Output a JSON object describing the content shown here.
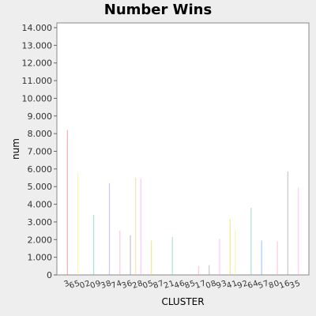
{
  "chart_data": {
    "type": "bar",
    "title": "Number Wins",
    "xlabel": "CLUSTER",
    "ylabel": "num",
    "ylim": [
      0,
      14000
    ],
    "yticks": [
      0,
      1000,
      2000,
      3000,
      4000,
      5000,
      6000,
      7000,
      8000,
      9000,
      10000,
      11000,
      12000,
      13000,
      14000
    ],
    "ytick_labels": [
      "0",
      "1.000",
      "2.000",
      "3.000",
      "4.000",
      "5.000",
      "6.000",
      "7.000",
      "8.000",
      "9.000",
      "10.000",
      "11.000",
      "12.000",
      "13.000",
      "14.000"
    ],
    "grid": false,
    "legend": "none",
    "categories": [
      "3",
      "6",
      "5",
      "0",
      "2",
      "0",
      "9",
      "3",
      "8",
      "7",
      "4",
      "3",
      "6",
      "2",
      "8",
      "0",
      "5",
      "8",
      "7",
      "2",
      "1",
      "4",
      "6",
      "8",
      "5",
      "1",
      "7",
      "0",
      "8",
      "9",
      "3",
      "4",
      "1",
      "9",
      "2",
      "6",
      "4",
      "5",
      "7",
      "8",
      "0",
      "1",
      "6",
      "3",
      "5"
    ],
    "values": [
      8200,
      0,
      5800,
      0,
      0,
      3400,
      0,
      0,
      5200,
      0,
      2500,
      0,
      2250,
      5500,
      5450,
      0,
      1950,
      0,
      0,
      0,
      2150,
      0,
      0,
      0,
      0,
      500,
      0,
      550,
      0,
      2050,
      0,
      3150,
      2550,
      0,
      0,
      3800,
      0,
      1950,
      0,
      0,
      1900,
      0,
      5850,
      0,
      4950
    ],
    "colors": [
      "#ff6666",
      "#ffcc33",
      "#ffee66",
      "#ccff66",
      "#66cc66",
      "#66ccaa",
      "#66cccc",
      "#6699ff",
      "#9999ff",
      "#cc99ff",
      "#ff99cc",
      "#ff6699",
      "#999999",
      "#ffcc66",
      "#ff99ff"
    ]
  }
}
